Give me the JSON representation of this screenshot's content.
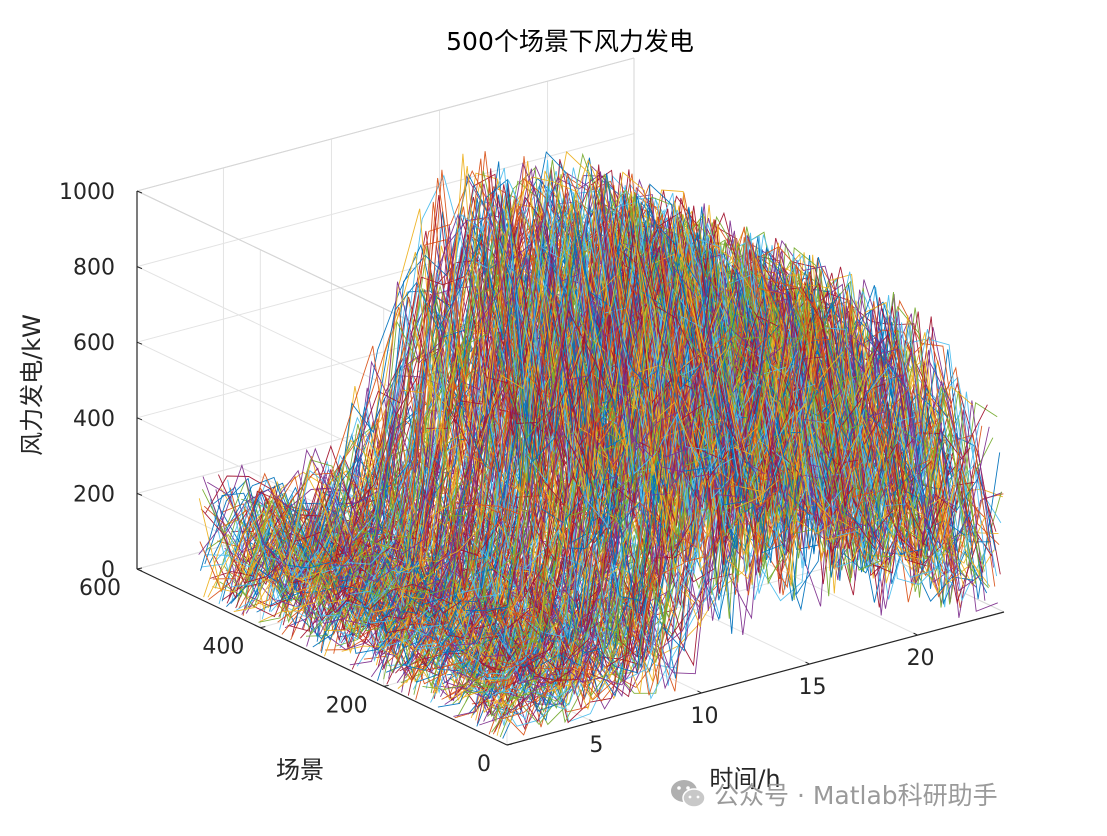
{
  "chart_data": {
    "type": "line-3d",
    "title": "500个场景下风力发电",
    "xlabel": "时间/h",
    "ylabel": "场景",
    "zlabel": "风力发电/kW",
    "x_ticks": [
      "5",
      "10",
      "15",
      "20"
    ],
    "y_ticks": [
      "0",
      "200",
      "400",
      "600"
    ],
    "z_ticks": [
      "0",
      "200",
      "400",
      "600",
      "800",
      "1000"
    ],
    "xlim": [
      1,
      24
    ],
    "ylim": [
      0,
      600
    ],
    "zlim": [
      0,
      1000
    ],
    "grid": true,
    "num_scenarios": 500,
    "hours": 24,
    "hourly_range_kW": [
      [
        5,
        360
      ],
      [
        5,
        320
      ],
      [
        5,
        330
      ],
      [
        5,
        300
      ],
      [
        5,
        300
      ],
      [
        5,
        330
      ],
      [
        5,
        380
      ],
      [
        5,
        480
      ],
      [
        10,
        560
      ],
      [
        40,
        720
      ],
      [
        80,
        940
      ],
      [
        100,
        1000
      ],
      [
        100,
        1000
      ],
      [
        120,
        1000
      ],
      [
        100,
        1000
      ],
      [
        80,
        980
      ],
      [
        60,
        960
      ],
      [
        50,
        940
      ],
      [
        40,
        920
      ],
      [
        30,
        880
      ],
      [
        20,
        820
      ],
      [
        10,
        740
      ],
      [
        5,
        620
      ],
      [
        5,
        540
      ]
    ],
    "series_colors": [
      "#0072BD",
      "#D95319",
      "#EDB120",
      "#7E2F8E",
      "#77AC30",
      "#4DBEEE",
      "#A2142F"
    ]
  },
  "watermark": {
    "text": "公众号 · Matlab科研助手",
    "icon": "wechat-icon"
  }
}
